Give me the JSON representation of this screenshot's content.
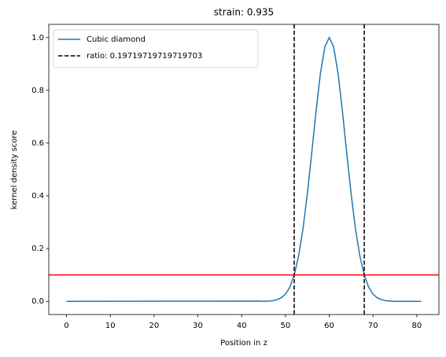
{
  "chart_data": {
    "type": "line",
    "title": "strain: 0.935",
    "x_label": "Position in z",
    "y_label": "kernel density score",
    "series": [
      {
        "name": "Cubic diamond",
        "color": "#1f77b4",
        "x": [
          0,
          44,
          45,
          46,
          47,
          48,
          49,
          50,
          51,
          52,
          53,
          54,
          55,
          56,
          57,
          58,
          59,
          60,
          61,
          62,
          63,
          64,
          65,
          66,
          67,
          68,
          69,
          70,
          71,
          72,
          73,
          74,
          75,
          76,
          81
        ],
        "values": [
          0,
          0.001,
          0,
          0.001,
          0.002,
          0.006,
          0.013,
          0.027,
          0.054,
          0.1,
          0.172,
          0.274,
          0.407,
          0.562,
          0.723,
          0.866,
          0.965,
          1.0,
          0.965,
          0.866,
          0.723,
          0.562,
          0.407,
          0.274,
          0.172,
          0.1,
          0.054,
          0.027,
          0.013,
          0.006,
          0.002,
          0.001,
          0,
          0,
          0
        ]
      }
    ],
    "vlines": {
      "name": "ratio: 0.19719719719719703",
      "color": "#000000",
      "values": [
        52,
        68
      ]
    },
    "hline": {
      "value": 0.1,
      "color": "#ff0000"
    },
    "xlim": [
      -4.05,
      85.05
    ],
    "xticks": [
      0,
      10,
      20,
      30,
      40,
      50,
      60,
      70,
      80
    ],
    "ylim": [
      -0.05,
      1.05
    ],
    "yticks": [
      {
        "value": 0,
        "label": "0.0"
      },
      0.2,
      0.4,
      0.6,
      0.8,
      {
        "value": 1,
        "label": "1.0"
      }
    ],
    "legend": "upper left"
  }
}
